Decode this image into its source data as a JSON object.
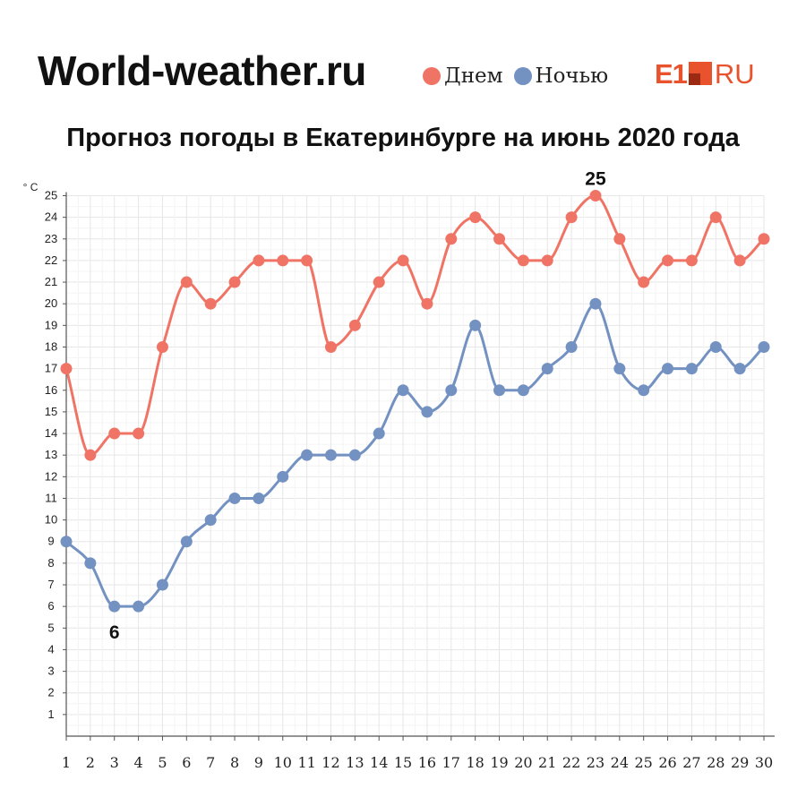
{
  "header": {
    "brand": "World-weather.ru",
    "logo": {
      "left": "E1",
      "right": "RU"
    }
  },
  "legend": [
    {
      "label": "Днем",
      "color": "#f07466"
    },
    {
      "label": "Ночью",
      "color": "#7391c1"
    }
  ],
  "colors": {
    "day": "#f07466",
    "night": "#7391c1",
    "logo": "#e8522d",
    "logo_dark": "#9c2a12"
  },
  "chart_data": {
    "type": "line",
    "title": "Прогноз погоды в Екатеринбурге на июнь 2020 года",
    "ylabel": "° C",
    "xlabel": "",
    "x": [
      1,
      2,
      3,
      4,
      5,
      6,
      7,
      8,
      9,
      10,
      11,
      12,
      13,
      14,
      15,
      16,
      17,
      18,
      19,
      20,
      21,
      22,
      23,
      24,
      25,
      26,
      27,
      28,
      29,
      30
    ],
    "ylim": [
      0,
      25
    ],
    "yticks": [
      1,
      2,
      3,
      4,
      5,
      6,
      7,
      8,
      9,
      10,
      11,
      12,
      13,
      14,
      15,
      16,
      17,
      18,
      19,
      20,
      21,
      22,
      23,
      24,
      25
    ],
    "grid": true,
    "legend_position": "top-right",
    "series": [
      {
        "name": "Днем",
        "color": "#f07466",
        "values": [
          17,
          13,
          14,
          14,
          18,
          21,
          20,
          21,
          22,
          22,
          22,
          18,
          19,
          21,
          22,
          20,
          23,
          24,
          23,
          22,
          22,
          24,
          25,
          23,
          21,
          22,
          22,
          24,
          22,
          23
        ]
      },
      {
        "name": "Ночью",
        "color": "#7391c1",
        "values": [
          9,
          8,
          6,
          6,
          7,
          9,
          10,
          11,
          11,
          12,
          13,
          13,
          13,
          14,
          16,
          15,
          16,
          19,
          16,
          16,
          17,
          18,
          20,
          17,
          16,
          17,
          17,
          18,
          17,
          18
        ]
      }
    ],
    "annotations": [
      {
        "text": "25",
        "x": 23,
        "y": 25
      },
      {
        "text": "6",
        "x": 3,
        "y": 6
      }
    ]
  }
}
